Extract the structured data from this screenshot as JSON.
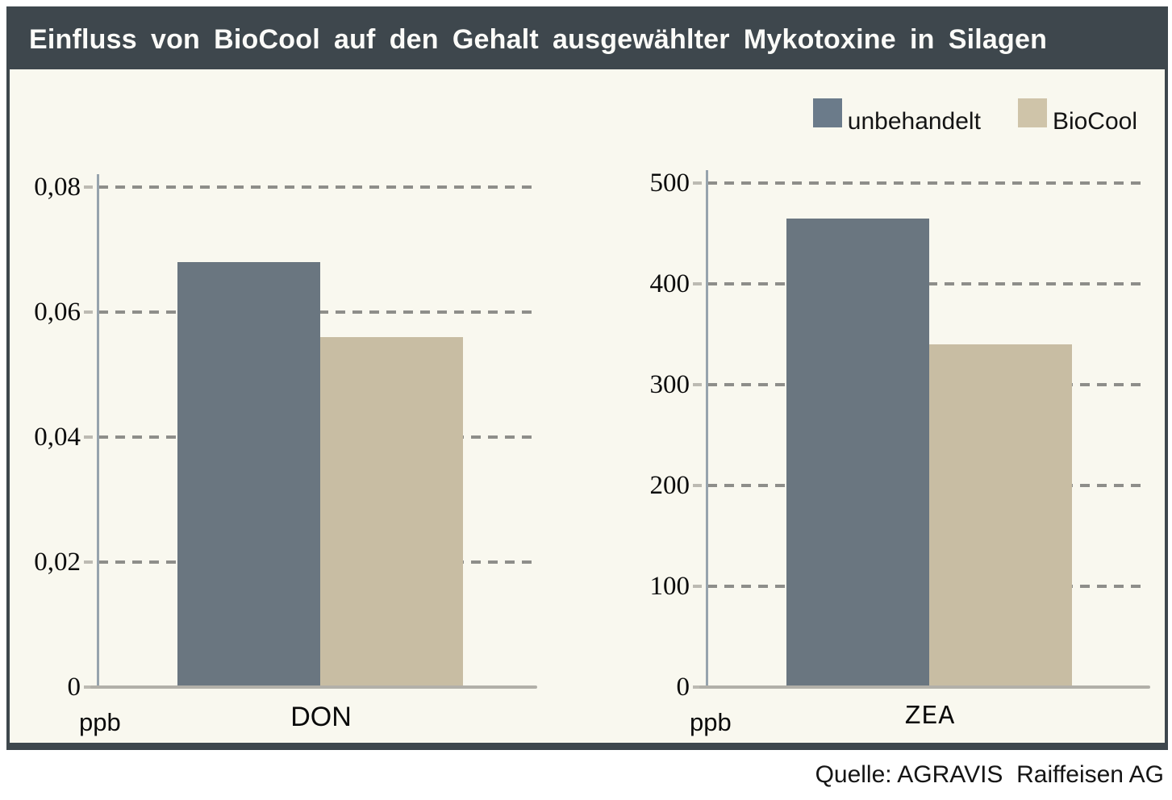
{
  "title": "Einfluss von BioCool auf den Gehalt ausgewählter Mykotoxine in Silagen",
  "legend": {
    "position": "top-right",
    "items": [
      {
        "label": "unbehandelt",
        "color": "#6b7b8a"
      },
      {
        "label": "BioCool",
        "color": "#cfc4a9"
      }
    ]
  },
  "footer": {
    "source": "Quelle: AGRAVIS  Raiffeisen AG"
  },
  "colors": {
    "panel_background": "#f9f8ef",
    "title_bar": "#3e474d",
    "title_text": "#fbfbf8",
    "gridline": "#8e8e8a",
    "axis": "#97a3ad",
    "baseline": "#b2b0a9"
  },
  "chart_data": [
    {
      "type": "bar",
      "categories": [
        "DON"
      ],
      "ylabel": "ppb",
      "xlabel": "",
      "ylim": [
        0,
        0.08
      ],
      "grid": "dashed-horizontal",
      "yticks": [
        {
          "label": "0",
          "value": 0
        },
        {
          "label": "0,02",
          "value": 0.02
        },
        {
          "label": "0,04",
          "value": 0.04
        },
        {
          "label": "0,06",
          "value": 0.06
        },
        {
          "label": "0,08",
          "value": 0.08
        }
      ],
      "series": [
        {
          "name": "unbehandelt",
          "values": [
            0.068
          ],
          "color": "#6a7680"
        },
        {
          "name": "BioCool",
          "values": [
            0.056
          ],
          "color": "#c8bda3"
        }
      ]
    },
    {
      "type": "bar",
      "categories": [
        "ZEA"
      ],
      "ylabel": "ppb",
      "xlabel": "",
      "ylim": [
        0,
        500
      ],
      "grid": "dashed-horizontal",
      "yticks": [
        {
          "label": "0",
          "value": 0
        },
        {
          "label": "100",
          "value": 100
        },
        {
          "label": "200",
          "value": 200
        },
        {
          "label": "300",
          "value": 300
        },
        {
          "label": "400",
          "value": 400
        },
        {
          "label": "500",
          "value": 500
        }
      ],
      "series": [
        {
          "name": "unbehandelt",
          "values": [
            465
          ],
          "color": "#6a7680"
        },
        {
          "name": "BioCool",
          "values": [
            340
          ],
          "color": "#c8bda3"
        }
      ]
    }
  ]
}
